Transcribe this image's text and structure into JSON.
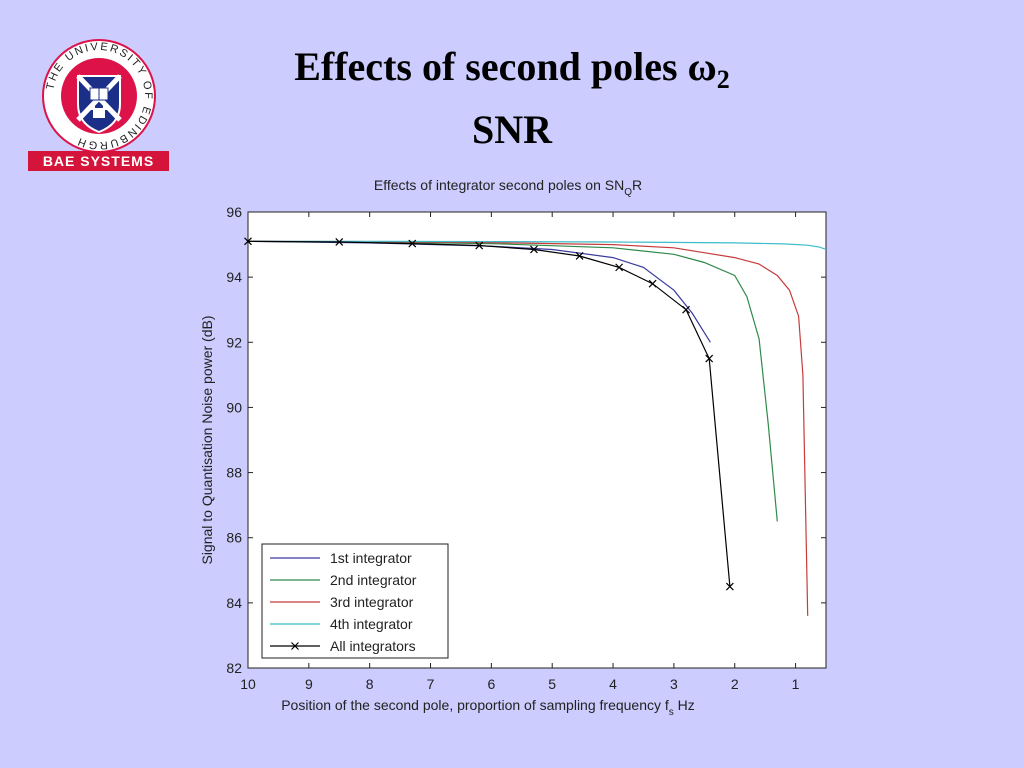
{
  "slide": {
    "title_line1": "Effects of second poles ω",
    "title_sub": "2",
    "title_line2": "SNR"
  },
  "logos": {
    "university_ring_text": "THE UNIVERSITY OF EDINBURGH",
    "bae_label": "BAE SYSTEMS",
    "colors": {
      "crest_red": "#dd1248",
      "crest_blue": "#1b2f88",
      "bae_red": "#d5143b"
    }
  },
  "chart_data": {
    "type": "line",
    "title": "Effects of integrator second poles on SN",
    "title_sub": "Q",
    "title_end": "R",
    "xlabel": "Position of the second pole, proportion of sampling frequency f",
    "xlabel_sub": "s",
    "xlabel_end": " Hz",
    "ylabel": "Signal to Quantisation Noise power (dB)",
    "xlim": [
      10,
      0.5
    ],
    "ylim": [
      82,
      96
    ],
    "xticks": [
      10,
      9,
      8,
      7,
      6,
      5,
      4,
      3,
      2,
      1
    ],
    "yticks": [
      82,
      84,
      86,
      88,
      90,
      92,
      94,
      96
    ],
    "legend_position": "bottom-left",
    "grid": false,
    "series": [
      {
        "name": "1st integrator",
        "color": "#3a3aa0",
        "marker": "none",
        "x": [
          10,
          8,
          6,
          5,
          4,
          3.5,
          3,
          2.7,
          2.4
        ],
        "y": [
          95.1,
          95.05,
          94.95,
          94.85,
          94.6,
          94.3,
          93.6,
          92.9,
          92.0
        ]
      },
      {
        "name": "2nd integrator",
        "color": "#2e8a4a",
        "marker": "none",
        "x": [
          10,
          8,
          6,
          4,
          3,
          2.5,
          2.0,
          1.8,
          1.6,
          1.45,
          1.3
        ],
        "y": [
          95.1,
          95.08,
          95.03,
          94.9,
          94.7,
          94.45,
          94.05,
          93.4,
          92.1,
          89.5,
          86.5
        ]
      },
      {
        "name": "3rd integrator",
        "color": "#c63b3b",
        "marker": "none",
        "x": [
          10,
          8,
          6,
          4,
          3,
          2,
          1.6,
          1.3,
          1.1,
          0.95,
          0.88,
          0.8
        ],
        "y": [
          95.1,
          95.09,
          95.06,
          95.0,
          94.9,
          94.6,
          94.4,
          94.05,
          93.6,
          92.8,
          91.0,
          83.6
        ]
      },
      {
        "name": "4th integrator",
        "color": "#3cbcc8",
        "marker": "none",
        "x": [
          10,
          8,
          6,
          4,
          2,
          1.2,
          0.8,
          0.6,
          0.5
        ],
        "y": [
          95.1,
          95.1,
          95.09,
          95.08,
          95.05,
          95.02,
          94.98,
          94.92,
          94.85
        ]
      },
      {
        "name": "All integrators",
        "color": "#000000",
        "marker": "x",
        "x": [
          10,
          8.5,
          7.3,
          6.2,
          5.3,
          4.55,
          3.9,
          3.35,
          2.8,
          2.42,
          2.08
        ],
        "y": [
          95.1,
          95.08,
          95.03,
          94.97,
          94.85,
          94.65,
          94.3,
          93.8,
          93.0,
          91.5,
          84.5
        ]
      }
    ]
  }
}
